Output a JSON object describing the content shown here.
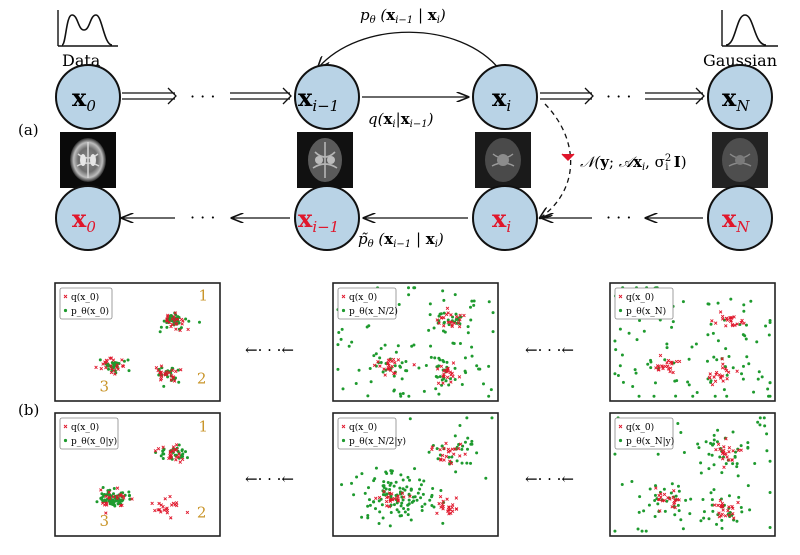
{
  "labels": {
    "panel_a": "(a)",
    "panel_b": "(b)",
    "data": "Data",
    "gaussian": "Gaussian",
    "dots": "· · ·",
    "arrow_dots": "←· · ·←"
  },
  "nodes_top": [
    {
      "sym": "x",
      "sub": "0"
    },
    {
      "sym": "x",
      "sub": "i−1"
    },
    {
      "sym": "x",
      "sub": "i"
    },
    {
      "sym": "x",
      "sub": "N"
    }
  ],
  "nodes_bottom": [
    {
      "sym": "x",
      "sub": "0"
    },
    {
      "sym": "x",
      "sub": "i−1"
    },
    {
      "sym": "x",
      "sub": "i"
    },
    {
      "sym": "x",
      "sub": "N"
    }
  ],
  "equations": {
    "reverse": "p_θ (x_{i−1} | x_i)",
    "forward": "q(x_i | x_{i−1})",
    "guided": "p̃_θ (x_{i−1} | x_i)",
    "likelihood": "𝒩(y; 𝒜x_i, σ_i² I)"
  },
  "scatter_panels": [
    {
      "legend": [
        "q(x_0)",
        "p_θ(x_0)"
      ],
      "labels": [
        "1",
        "2",
        "3"
      ]
    },
    {
      "legend": [
        "q(x_0)",
        "p_θ(x_N/2)"
      ],
      "labels": []
    },
    {
      "legend": [
        "q(x_0)",
        "p_θ(x_N)"
      ],
      "labels": []
    },
    {
      "legend": [
        "q(x_0)",
        "p_θ(x_0|y)"
      ],
      "labels": [
        "1",
        "2",
        "3"
      ]
    },
    {
      "legend": [
        "q(x_0)",
        "p_θ(x_N/2|y)"
      ],
      "labels": []
    },
    {
      "legend": [
        "q(x_0)",
        "p_θ(x_N|y)"
      ],
      "labels": []
    }
  ],
  "colors": {
    "node_fill": "#b9d3e6",
    "node_stroke": "#111111",
    "red": "#e0162b",
    "green": "#1e9a2e",
    "label_gold": "#c9952a",
    "panel_border": "#222222"
  },
  "icons": [
    "bimodal-distribution-icon",
    "gaussian-distribution-icon",
    "brain-mri-image"
  ]
}
